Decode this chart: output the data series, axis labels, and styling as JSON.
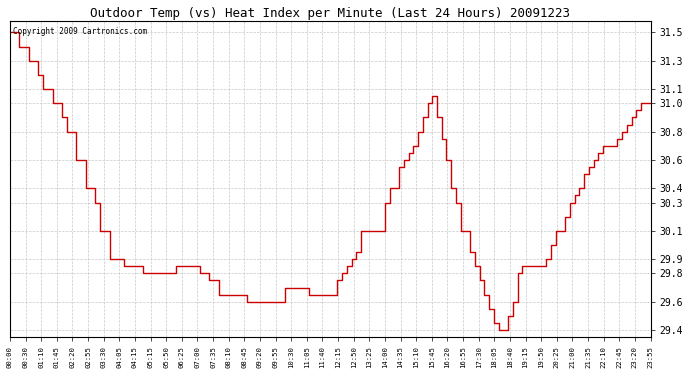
{
  "title": "Outdoor Temp (vs) Heat Index per Minute (Last 24 Hours) 20091223",
  "copyright": "Copyright 2009 Cartronics.com",
  "line_color": "#cc0000",
  "background_color": "#ffffff",
  "grid_color": "#bbbbbb",
  "ylim": [
    29.35,
    31.58
  ],
  "yticks": [
    29.4,
    29.6,
    29.8,
    29.9,
    30.1,
    30.3,
    30.4,
    30.6,
    30.8,
    31.0,
    31.1,
    31.3,
    31.5
  ],
  "xtick_labels": [
    "00:00",
    "00:30",
    "01:10",
    "01:45",
    "02:20",
    "02:55",
    "03:30",
    "04:05",
    "04:15",
    "05:15",
    "05:50",
    "06:25",
    "07:00",
    "07:35",
    "08:10",
    "08:45",
    "09:20",
    "09:55",
    "10:30",
    "11:05",
    "11:40",
    "12:15",
    "12:50",
    "13:25",
    "14:00",
    "14:35",
    "15:10",
    "15:45",
    "16:20",
    "16:55",
    "17:30",
    "18:05",
    "18:40",
    "19:15",
    "19:50",
    "20:25",
    "21:00",
    "21:35",
    "22:10",
    "22:45",
    "23:20",
    "23:55"
  ],
  "data_y": [
    31.5,
    31.5,
    31.4,
    31.4,
    31.3,
    31.3,
    31.2,
    31.1,
    31.1,
    31.0,
    31.0,
    30.9,
    30.8,
    30.8,
    30.6,
    30.6,
    30.4,
    30.4,
    30.3,
    30.1,
    30.1,
    29.9,
    29.9,
    29.9,
    29.85,
    29.85,
    29.85,
    29.85,
    29.8,
    29.8,
    29.8,
    29.8,
    29.8,
    29.8,
    29.8,
    29.85,
    29.85,
    29.85,
    29.85,
    29.85,
    29.8,
    29.8,
    29.75,
    29.75,
    29.65,
    29.65,
    29.65,
    29.65,
    29.65,
    29.65,
    29.6,
    29.6,
    29.6,
    29.6,
    29.6,
    29.6,
    29.6,
    29.6,
    29.7,
    29.7,
    29.7,
    29.7,
    29.7,
    29.65,
    29.65,
    29.65,
    29.65,
    29.65,
    29.65,
    29.75,
    29.8,
    29.85,
    29.9,
    29.95,
    30.1,
    30.1,
    30.1,
    30.1,
    30.1,
    30.3,
    30.4,
    30.4,
    30.55,
    30.6,
    30.65,
    30.7,
    30.8,
    30.9,
    31.0,
    31.05,
    30.9,
    30.75,
    30.6,
    30.4,
    30.3,
    30.1,
    30.1,
    29.95,
    29.85,
    29.75,
    29.65,
    29.55,
    29.45,
    29.4,
    29.4,
    29.5,
    29.6,
    29.8,
    29.85,
    29.85,
    29.85,
    29.85,
    29.85,
    29.9,
    30.0,
    30.1,
    30.1,
    30.2,
    30.3,
    30.35,
    30.4,
    30.5,
    30.55,
    30.6,
    30.65,
    30.7,
    30.7,
    30.7,
    30.75,
    30.8,
    30.85,
    30.9,
    30.95,
    31.0,
    31.0,
    31.0
  ]
}
